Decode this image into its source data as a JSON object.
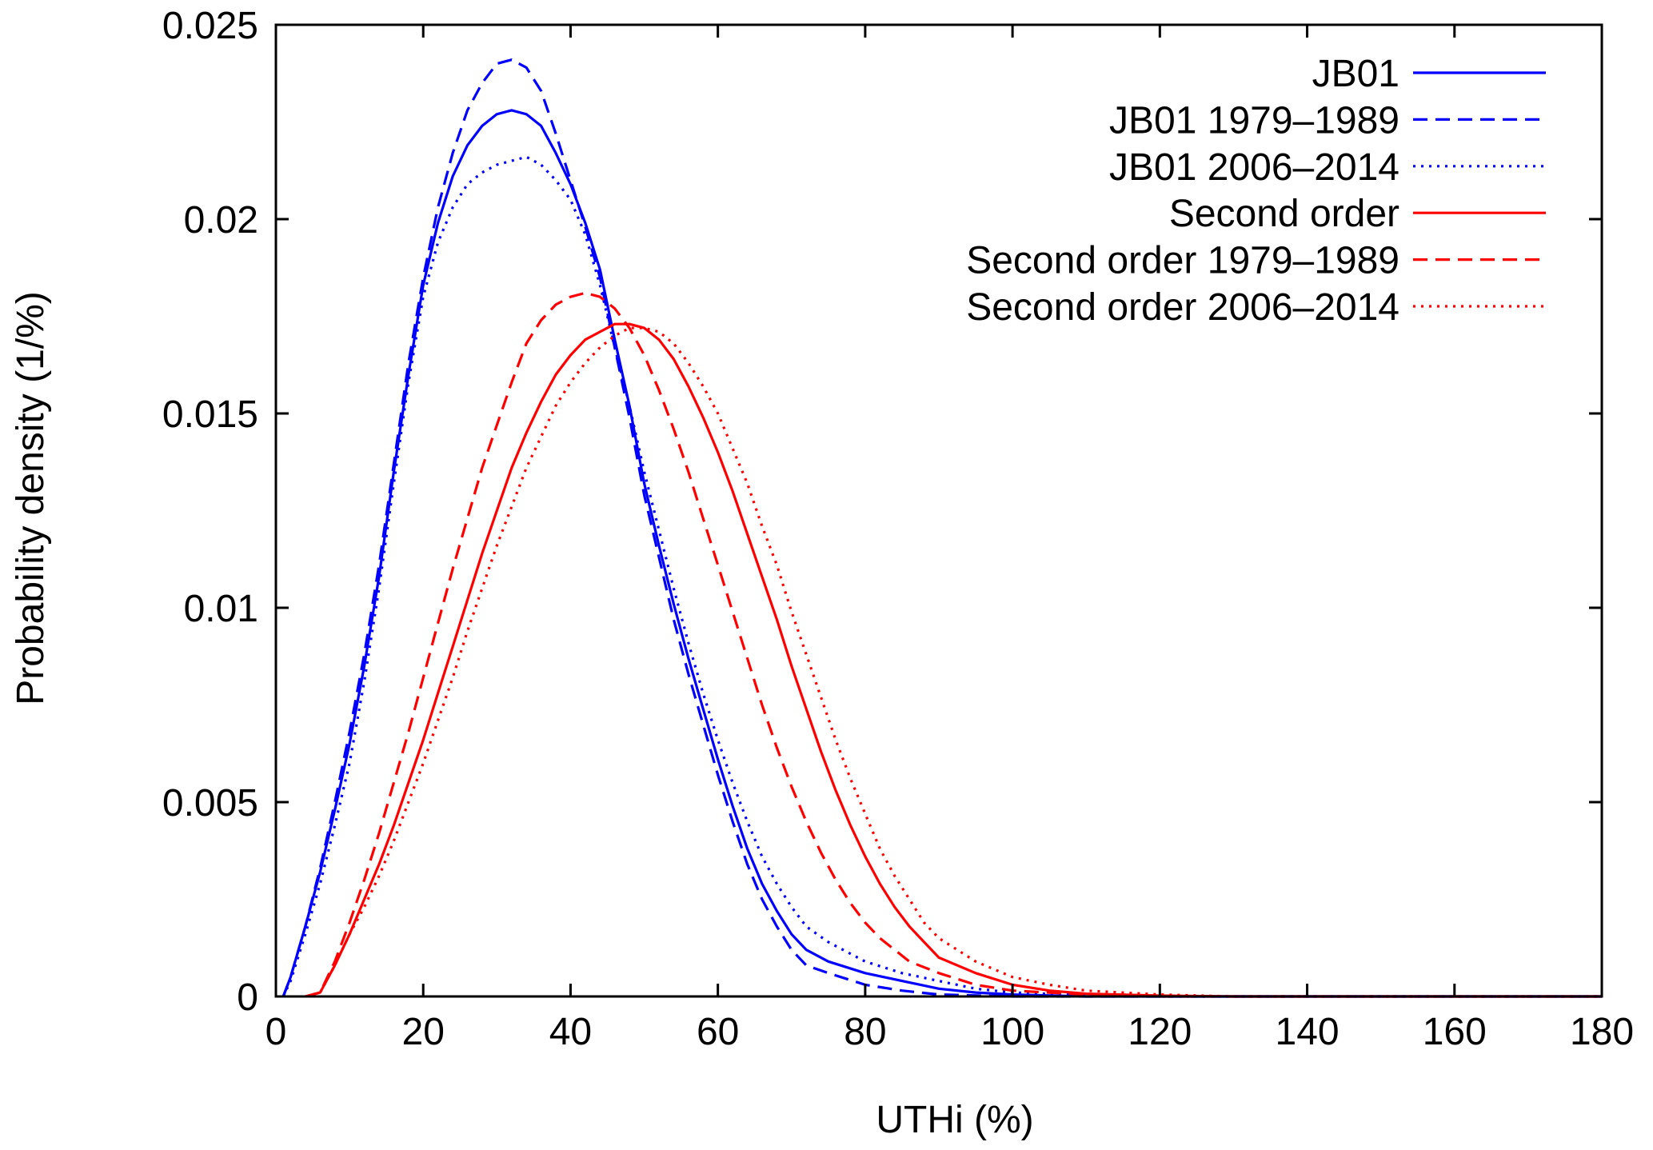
{
  "chart_data": {
    "type": "line",
    "xlabel": "UTHi (%)",
    "ylabel": "Probability density (1/%)",
    "xlim": [
      0,
      180
    ],
    "ylim": [
      0,
      0.025
    ],
    "xticks": [
      0,
      20,
      40,
      60,
      80,
      100,
      120,
      140,
      160,
      180
    ],
    "xtick_labels": [
      "0",
      "20",
      "40",
      "60",
      "80",
      "100",
      "120",
      "140",
      "160",
      "180"
    ],
    "yticks": [
      0,
      0.005,
      0.01,
      0.015,
      0.02,
      0.025
    ],
    "ytick_labels": [
      "0",
      "0.005",
      "0.01",
      "0.015",
      "0.02",
      "0.025"
    ],
    "grid": false,
    "legend_position": "top-right",
    "series": [
      {
        "name": "JB01",
        "color": "#0000ff",
        "dash": "solid",
        "points": [
          [
            1,
            0
          ],
          [
            2,
            0.0005
          ],
          [
            4,
            0.0018
          ],
          [
            6,
            0.0032
          ],
          [
            8,
            0.0048
          ],
          [
            10,
            0.0065
          ],
          [
            12,
            0.0085
          ],
          [
            14,
            0.0108
          ],
          [
            16,
            0.0135
          ],
          [
            18,
            0.016
          ],
          [
            20,
            0.0183
          ],
          [
            22,
            0.0199
          ],
          [
            24,
            0.0211
          ],
          [
            26,
            0.0219
          ],
          [
            28,
            0.0224
          ],
          [
            30,
            0.0227
          ],
          [
            32,
            0.0228
          ],
          [
            34,
            0.0227
          ],
          [
            36,
            0.0224
          ],
          [
            38,
            0.0217
          ],
          [
            40,
            0.0209
          ],
          [
            42,
            0.0199
          ],
          [
            44,
            0.0187
          ],
          [
            46,
            0.0169
          ],
          [
            48,
            0.0152
          ],
          [
            50,
            0.0132
          ],
          [
            52,
            0.0116
          ],
          [
            54,
            0.0101
          ],
          [
            56,
            0.0087
          ],
          [
            58,
            0.0074
          ],
          [
            60,
            0.0061
          ],
          [
            62,
            0.0049
          ],
          [
            64,
            0.0038
          ],
          [
            66,
            0.0029
          ],
          [
            68,
            0.0022
          ],
          [
            70,
            0.0016
          ],
          [
            72,
            0.0012
          ],
          [
            75,
            0.0009
          ],
          [
            80,
            0.0006
          ],
          [
            85,
            0.0004
          ],
          [
            90,
            0.0002
          ],
          [
            95,
            0.0001
          ],
          [
            100,
            5e-05
          ],
          [
            110,
            0.0
          ],
          [
            180,
            0.0
          ]
        ]
      },
      {
        "name": "JB01 1979–1989",
        "color": "#0000ff",
        "dash": "dashed",
        "points": [
          [
            1,
            0
          ],
          [
            2,
            0.0005
          ],
          [
            4,
            0.0018
          ],
          [
            6,
            0.0033
          ],
          [
            8,
            0.005
          ],
          [
            10,
            0.0068
          ],
          [
            12,
            0.0088
          ],
          [
            14,
            0.0111
          ],
          [
            16,
            0.0137
          ],
          [
            18,
            0.0163
          ],
          [
            20,
            0.0185
          ],
          [
            22,
            0.0203
          ],
          [
            24,
            0.0217
          ],
          [
            26,
            0.0228
          ],
          [
            28,
            0.0235
          ],
          [
            30,
            0.024
          ],
          [
            32,
            0.0241
          ],
          [
            34,
            0.0239
          ],
          [
            36,
            0.0233
          ],
          [
            38,
            0.0222
          ],
          [
            40,
            0.021
          ],
          [
            42,
            0.0198
          ],
          [
            44,
            0.0185
          ],
          [
            46,
            0.0167
          ],
          [
            48,
            0.0149
          ],
          [
            50,
            0.0129
          ],
          [
            52,
            0.0113
          ],
          [
            54,
            0.0097
          ],
          [
            56,
            0.0083
          ],
          [
            58,
            0.007
          ],
          [
            60,
            0.0057
          ],
          [
            62,
            0.0045
          ],
          [
            64,
            0.0034
          ],
          [
            66,
            0.0025
          ],
          [
            68,
            0.0018
          ],
          [
            70,
            0.0012
          ],
          [
            72,
            0.0008
          ],
          [
            75,
            0.0006
          ],
          [
            80,
            0.0003
          ],
          [
            85,
            0.00015
          ],
          [
            90,
            5e-05
          ],
          [
            100,
            0.0
          ],
          [
            180,
            0.0
          ]
        ]
      },
      {
        "name": "JB01 2006–2014",
        "color": "#0000ff",
        "dash": "dotted",
        "points": [
          [
            1,
            0
          ],
          [
            2,
            0.0004
          ],
          [
            4,
            0.0016
          ],
          [
            6,
            0.0029
          ],
          [
            8,
            0.0044
          ],
          [
            10,
            0.006
          ],
          [
            12,
            0.0081
          ],
          [
            14,
            0.0105
          ],
          [
            16,
            0.0132
          ],
          [
            18,
            0.0158
          ],
          [
            20,
            0.018
          ],
          [
            22,
            0.0194
          ],
          [
            24,
            0.0203
          ],
          [
            26,
            0.0209
          ],
          [
            28,
            0.0212
          ],
          [
            30,
            0.0214
          ],
          [
            32,
            0.0215
          ],
          [
            34,
            0.0216
          ],
          [
            36,
            0.0214
          ],
          [
            38,
            0.021
          ],
          [
            40,
            0.0205
          ],
          [
            42,
            0.0196
          ],
          [
            44,
            0.0183
          ],
          [
            46,
            0.0167
          ],
          [
            48,
            0.0152
          ],
          [
            50,
            0.0135
          ],
          [
            52,
            0.012
          ],
          [
            54,
            0.0105
          ],
          [
            56,
            0.0091
          ],
          [
            58,
            0.0078
          ],
          [
            60,
            0.0066
          ],
          [
            62,
            0.0055
          ],
          [
            64,
            0.0045
          ],
          [
            66,
            0.0036
          ],
          [
            68,
            0.0029
          ],
          [
            70,
            0.0023
          ],
          [
            72,
            0.0018
          ],
          [
            75,
            0.0014
          ],
          [
            80,
            0.0009
          ],
          [
            85,
            0.0006
          ],
          [
            90,
            0.0004
          ],
          [
            95,
            0.0002
          ],
          [
            100,
            0.0001
          ],
          [
            110,
            3e-05
          ],
          [
            120,
            0.0
          ],
          [
            180,
            0.0
          ]
        ]
      },
      {
        "name": "Second order",
        "color": "#ff0000",
        "dash": "solid",
        "points": [
          [
            4,
            0
          ],
          [
            6,
            0.0001
          ],
          [
            8,
            0.0008
          ],
          [
            10,
            0.0016
          ],
          [
            12,
            0.0025
          ],
          [
            14,
            0.0034
          ],
          [
            16,
            0.0044
          ],
          [
            18,
            0.0055
          ],
          [
            20,
            0.0066
          ],
          [
            22,
            0.0078
          ],
          [
            24,
            0.009
          ],
          [
            26,
            0.0102
          ],
          [
            28,
            0.0114
          ],
          [
            30,
            0.0125
          ],
          [
            32,
            0.0136
          ],
          [
            34,
            0.0145
          ],
          [
            36,
            0.0153
          ],
          [
            38,
            0.016
          ],
          [
            40,
            0.0165
          ],
          [
            42,
            0.0169
          ],
          [
            44,
            0.0171
          ],
          [
            46,
            0.0173
          ],
          [
            48,
            0.0173
          ],
          [
            50,
            0.0172
          ],
          [
            52,
            0.0169
          ],
          [
            54,
            0.0164
          ],
          [
            56,
            0.0157
          ],
          [
            58,
            0.0149
          ],
          [
            60,
            0.014
          ],
          [
            62,
            0.013
          ],
          [
            64,
            0.0119
          ],
          [
            66,
            0.0108
          ],
          [
            68,
            0.0097
          ],
          [
            70,
            0.0085
          ],
          [
            72,
            0.0074
          ],
          [
            74,
            0.0063
          ],
          [
            76,
            0.0053
          ],
          [
            78,
            0.0044
          ],
          [
            80,
            0.0036
          ],
          [
            82,
            0.0029
          ],
          [
            84,
            0.0023
          ],
          [
            86,
            0.0018
          ],
          [
            88,
            0.0014
          ],
          [
            90,
            0.001
          ],
          [
            95,
            0.0006
          ],
          [
            100,
            0.0003
          ],
          [
            105,
            0.00015
          ],
          [
            110,
            7e-05
          ],
          [
            120,
            2e-05
          ],
          [
            130,
            0.0
          ],
          [
            180,
            0.0
          ]
        ]
      },
      {
        "name": "Second order 1979–1989",
        "color": "#ff0000",
        "dash": "dashed",
        "points": [
          [
            4,
            0
          ],
          [
            6,
            0.0001
          ],
          [
            8,
            0.0009
          ],
          [
            10,
            0.0019
          ],
          [
            12,
            0.003
          ],
          [
            14,
            0.0042
          ],
          [
            16,
            0.0055
          ],
          [
            18,
            0.0068
          ],
          [
            20,
            0.0082
          ],
          [
            22,
            0.0096
          ],
          [
            24,
            0.011
          ],
          [
            26,
            0.0123
          ],
          [
            28,
            0.0136
          ],
          [
            30,
            0.0147
          ],
          [
            32,
            0.0158
          ],
          [
            34,
            0.0168
          ],
          [
            36,
            0.0174
          ],
          [
            38,
            0.0178
          ],
          [
            40,
            0.018
          ],
          [
            42,
            0.0181
          ],
          [
            44,
            0.018
          ],
          [
            46,
            0.0177
          ],
          [
            48,
            0.0172
          ],
          [
            50,
            0.0165
          ],
          [
            52,
            0.0156
          ],
          [
            54,
            0.0146
          ],
          [
            56,
            0.0135
          ],
          [
            58,
            0.0123
          ],
          [
            60,
            0.0111
          ],
          [
            62,
            0.0099
          ],
          [
            64,
            0.0087
          ],
          [
            66,
            0.0075
          ],
          [
            68,
            0.0064
          ],
          [
            70,
            0.0054
          ],
          [
            72,
            0.0045
          ],
          [
            74,
            0.0037
          ],
          [
            76,
            0.003
          ],
          [
            78,
            0.0024
          ],
          [
            80,
            0.0019
          ],
          [
            82,
            0.0015
          ],
          [
            84,
            0.0012
          ],
          [
            86,
            0.0009
          ],
          [
            90,
            0.0006
          ],
          [
            95,
            0.0003
          ],
          [
            100,
            0.00015
          ],
          [
            110,
            5e-05
          ],
          [
            120,
            0.0
          ],
          [
            180,
            0.0
          ]
        ]
      },
      {
        "name": "Second order 2006–2014",
        "color": "#ff0000",
        "dash": "dotted",
        "points": [
          [
            4,
            0
          ],
          [
            6,
            0.0001
          ],
          [
            8,
            0.0008
          ],
          [
            10,
            0.0016
          ],
          [
            12,
            0.0023
          ],
          [
            14,
            0.0031
          ],
          [
            16,
            0.004
          ],
          [
            18,
            0.005
          ],
          [
            20,
            0.006
          ],
          [
            22,
            0.0071
          ],
          [
            24,
            0.0082
          ],
          [
            26,
            0.0094
          ],
          [
            28,
            0.0105
          ],
          [
            30,
            0.0116
          ],
          [
            32,
            0.0126
          ],
          [
            34,
            0.0136
          ],
          [
            36,
            0.0144
          ],
          [
            38,
            0.0152
          ],
          [
            40,
            0.0158
          ],
          [
            42,
            0.0163
          ],
          [
            44,
            0.0167
          ],
          [
            46,
            0.017
          ],
          [
            48,
            0.0172
          ],
          [
            50,
            0.0172
          ],
          [
            52,
            0.0171
          ],
          [
            54,
            0.0168
          ],
          [
            56,
            0.0163
          ],
          [
            58,
            0.0157
          ],
          [
            60,
            0.015
          ],
          [
            62,
            0.0141
          ],
          [
            64,
            0.0132
          ],
          [
            66,
            0.0121
          ],
          [
            68,
            0.0111
          ],
          [
            70,
            0.0099
          ],
          [
            72,
            0.0088
          ],
          [
            74,
            0.0077
          ],
          [
            76,
            0.0066
          ],
          [
            78,
            0.0056
          ],
          [
            80,
            0.0047
          ],
          [
            82,
            0.0038
          ],
          [
            84,
            0.0031
          ],
          [
            86,
            0.0025
          ],
          [
            88,
            0.0019
          ],
          [
            90,
            0.0015
          ],
          [
            95,
            0.0009
          ],
          [
            100,
            0.0005
          ],
          [
            105,
            0.0003
          ],
          [
            110,
            0.00015
          ],
          [
            120,
            5e-05
          ],
          [
            130,
            0.0
          ],
          [
            180,
            0.0
          ]
        ]
      }
    ]
  }
}
